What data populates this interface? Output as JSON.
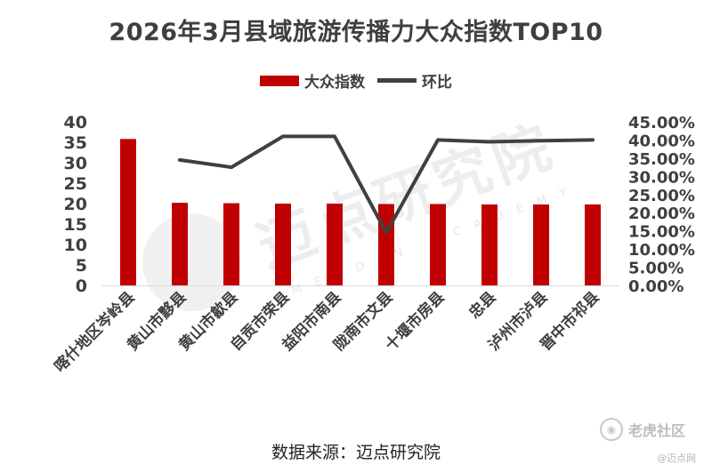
{
  "colors": {
    "bar": "#c00000",
    "line": "#404040",
    "text": "#3f3f3f"
  },
  "watermark": {
    "big": "迈点研究院",
    "small": "MEADIN ACADEMY",
    "brand": "老虎社区",
    "brand_icon": "tiger-logo-icon",
    "brand_sub": "@迈点网"
  },
  "source": "数据来源：迈点研究院",
  "chart_data": {
    "type": "bar",
    "title": "2026年3月县域旅游传播力大众指数TOP10",
    "categories": [
      "喀什地区岑岭县",
      "黄山市黟县",
      "黄山市歙县",
      "自贡市荣县",
      "益阳市南县",
      "陇南市文县",
      "十堰市房县",
      "忠县",
      "泸州市泸县",
      "晋中市祁县"
    ],
    "series": [
      {
        "name": "大众指数",
        "kind": "bar",
        "axis": "left",
        "values": [
          35.8,
          20.2,
          20.1,
          20.0,
          20.0,
          19.9,
          19.9,
          19.8,
          19.8,
          19.8
        ]
      },
      {
        "name": "环比",
        "kind": "line",
        "axis": "right",
        "values": [
          null,
          34.5,
          32.5,
          41.0,
          41.0,
          14.5,
          40.0,
          39.5,
          39.8,
          40.0
        ]
      }
    ],
    "y_left": {
      "min": 0,
      "max": 40,
      "ticks": [
        "0",
        "5",
        "10",
        "15",
        "20",
        "25",
        "30",
        "35",
        "40"
      ]
    },
    "y_right": {
      "min": 0,
      "max": 45,
      "ticks": [
        "0.00%",
        "5.00%",
        "10.00%",
        "15.00%",
        "20.00%",
        "25.00%",
        "30.00%",
        "35.00%",
        "40.00%",
        "45.00%"
      ]
    },
    "legend_position": "top",
    "grid": false
  }
}
